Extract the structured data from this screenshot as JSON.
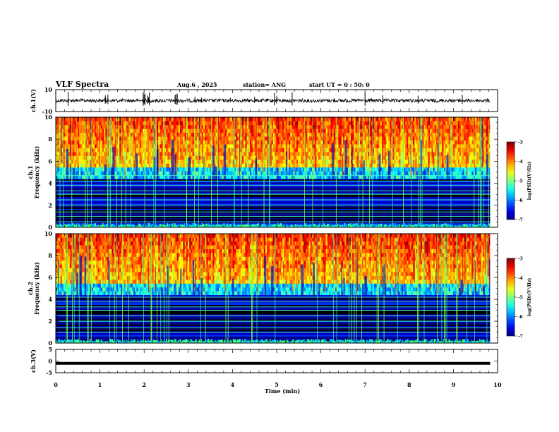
{
  "header": {
    "title": "VLF Spectra",
    "date": "Aug.6 , 2025",
    "station": "station= ANG",
    "start_ut": "start UT =  0 : 50: 0"
  },
  "chart_data": [
    {
      "name": "ch1-waveform",
      "type": "line",
      "ylabel": "ch.1(V)",
      "ylim": [
        -10,
        10
      ],
      "yticks": [
        "10",
        "-10"
      ],
      "baseline": 0,
      "spikes_min": [
        0.28,
        1.12,
        1.13,
        1.18,
        1.98,
        2.0,
        2.02,
        2.08,
        2.1,
        2.12,
        2.7,
        2.72,
        2.75,
        3.15,
        3.3,
        3.95,
        4.5,
        4.95,
        5.0,
        5.35,
        6.3,
        7.0,
        7.4,
        8.2,
        9.15,
        9.2
      ]
    },
    {
      "name": "ch1-spectrogram",
      "type": "heatmap",
      "title": "ch.1",
      "ylabel": "Frequency (kHz)",
      "xlim": [
        0,
        10
      ],
      "data_xmax": 9.83,
      "ylim": [
        0,
        10
      ],
      "yticks": [
        "0",
        "2",
        "4",
        "6",
        "8",
        "10"
      ],
      "colorbar": {
        "label": "log(PSD)(V²/Hz)",
        "ticks": [
          "-3",
          "-4",
          "-5",
          "-6",
          "-7"
        ],
        "range": [
          -7,
          -3
        ]
      },
      "description_bands_khz": [
        0.5,
        1.0,
        1.4,
        2.0,
        2.5,
        3.0,
        3.3,
        3.8,
        4.2,
        4.7
      ]
    },
    {
      "name": "ch2-spectrogram",
      "type": "heatmap",
      "title": "ch.2",
      "ylabel": "Frequency (kHz)",
      "xlim": [
        0,
        10
      ],
      "data_xmax": 9.83,
      "ylim": [
        0,
        10
      ],
      "yticks": [
        "0",
        "2",
        "4",
        "6",
        "8",
        "10"
      ],
      "colorbar": {
        "label": "log(PSD)(V²/Hz)",
        "ticks": [
          "-3",
          "-4",
          "-5",
          "-6",
          "-7"
        ],
        "range": [
          -7,
          -3
        ]
      },
      "description_bands_khz": [
        1.0,
        1.4,
        2.0,
        2.5,
        3.0,
        3.3,
        3.8,
        4.2
      ]
    },
    {
      "name": "ch3-waveform",
      "type": "line",
      "ylabel": "ch.3(V)",
      "ylim": [
        -5,
        5
      ],
      "yticks": [
        "5",
        "0",
        "-5"
      ],
      "constant_value": -1
    }
  ],
  "xaxis": {
    "label": "Time (min)",
    "range": [
      0,
      10
    ],
    "ticks": [
      "0",
      "1",
      "2",
      "3",
      "4",
      "5",
      "6",
      "7",
      "8",
      "9",
      "10"
    ]
  },
  "colors": {
    "frame": "#000000",
    "ch3_line": "#000000"
  }
}
